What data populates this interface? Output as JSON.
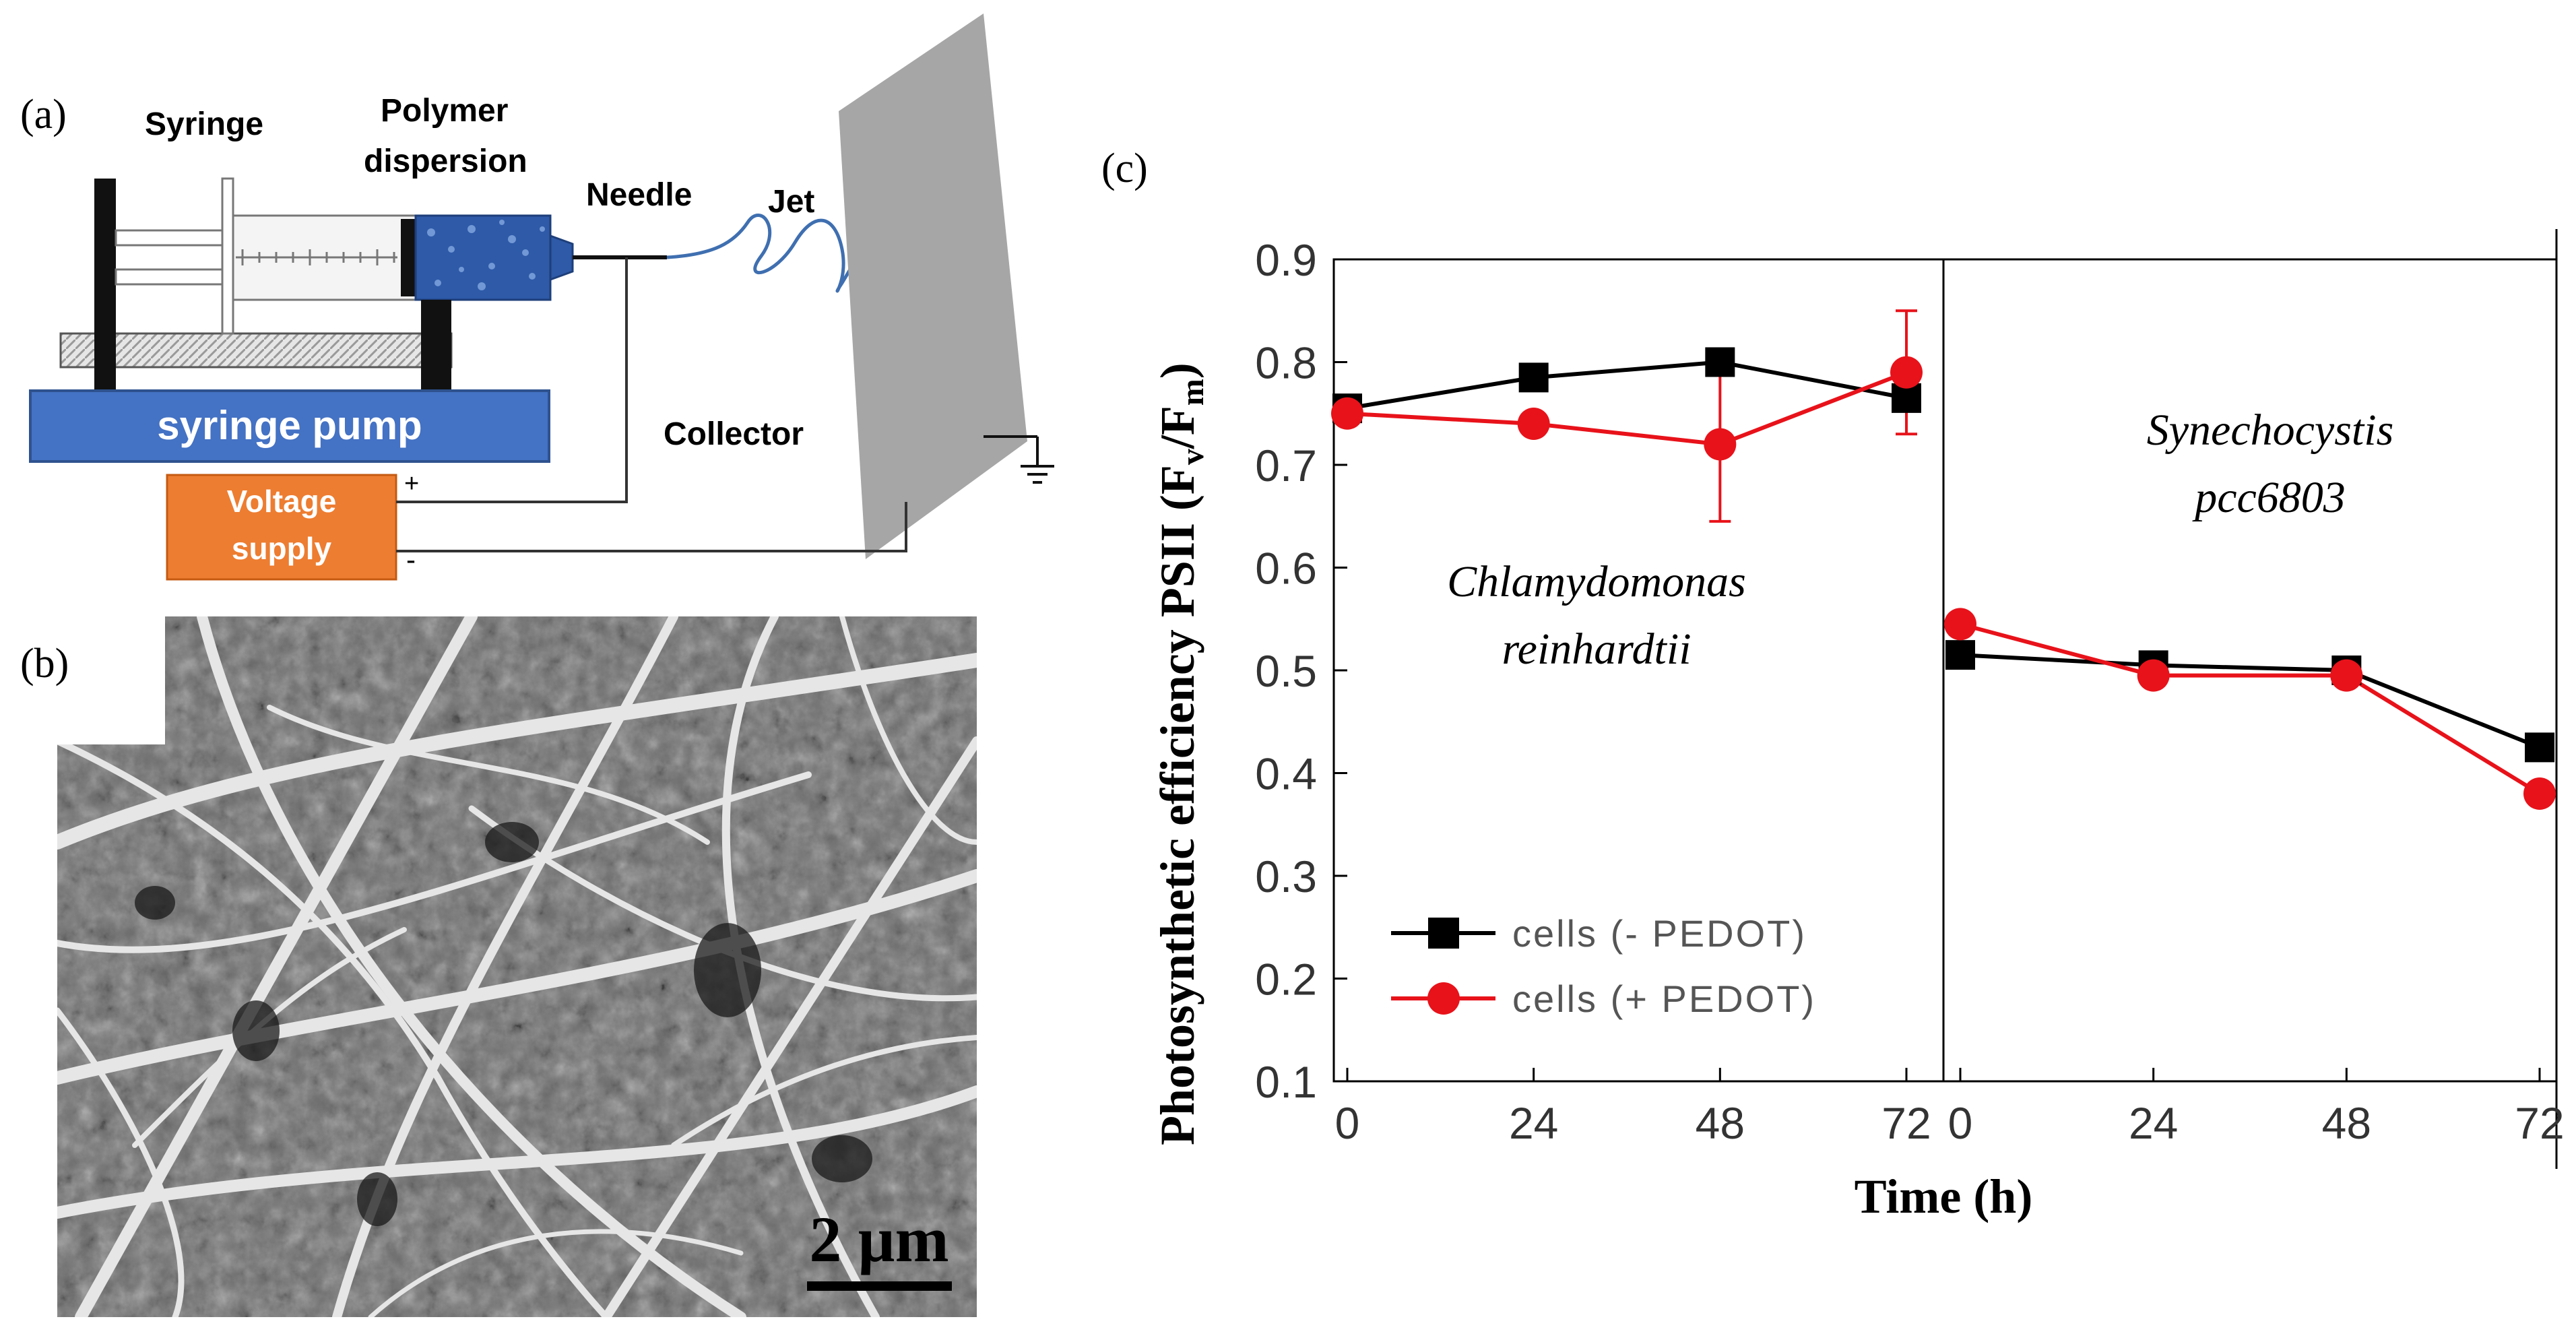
{
  "panel_a": {
    "label": "(a)",
    "syringe_label": "Syringe",
    "polymer_label_line1": "Polymer",
    "polymer_label_line2": "dispersion",
    "needle_label": "Needle",
    "jet_label": "Jet",
    "collector_label": "Collector",
    "pump_label": "syringe pump",
    "voltage_line1": "Voltage",
    "voltage_line2": "supply",
    "plus": "+",
    "minus": "-",
    "colors": {
      "pump": "#4472c4",
      "voltage": "#ed7d31",
      "polymer": "#2e5aa8",
      "jet": "#3f6fb0",
      "collector": "#a6a6a6"
    }
  },
  "panel_b": {
    "label": "(b)",
    "scale_bar": "2 µm"
  },
  "panel_c": {
    "label": "(c)",
    "left_species_line1": "Chlamydomonas",
    "left_species_line2": "reinhardtii",
    "right_species_line1": "Synechocystis",
    "right_species_line2": "pcc6803"
  },
  "chart_data": {
    "type": "line",
    "ylabel": "Photosynthetic efficiency PSII (Fv/Fm)",
    "ylabel_main": "Photosynthetic efficiency PSII (F",
    "ylabel_sub_v": "v",
    "ylabel_slash": "/F",
    "ylabel_sub_m": "m",
    "ylabel_close": ")",
    "xlabel": "Time (h)",
    "ylim": [
      0.1,
      0.9
    ],
    "yticks": [
      "0.1",
      "0.2",
      "0.3",
      "0.4",
      "0.5",
      "0.6",
      "0.7",
      "0.8",
      "0.9"
    ],
    "x": [
      0,
      24,
      48,
      72
    ],
    "xticks": [
      "0",
      "24",
      "48",
      "72"
    ],
    "legend": [
      "cells (- PEDOT)",
      "cells (+ PEDOT)"
    ],
    "colors": {
      "minus": "#000000",
      "plus": "#e8121a"
    },
    "panels": [
      {
        "name": "Chlamydomonas reinhardtii",
        "series": [
          {
            "name": "cells (- PEDOT)",
            "values": [
              0.755,
              0.785,
              0.8,
              0.765
            ]
          },
          {
            "name": "cells (+ PEDOT)",
            "values": [
              0.75,
              0.74,
              0.72,
              0.79
            ],
            "error": [
              0,
              0,
              0.075,
              0.06
            ]
          }
        ]
      },
      {
        "name": "Synechocystis pcc6803",
        "series": [
          {
            "name": "cells (- PEDOT)",
            "values": [
              0.515,
              0.505,
              0.5,
              0.425
            ]
          },
          {
            "name": "cells (+ PEDOT)",
            "values": [
              0.545,
              0.495,
              0.495,
              0.38
            ]
          }
        ]
      }
    ]
  }
}
